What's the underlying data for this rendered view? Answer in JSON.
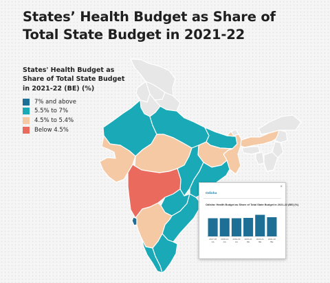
{
  "title": "States’ Health Budget as Share of Total State Budget in 2021-22",
  "legend": {
    "title": "States' Health Budget as Share of Total State Budget in 2021-22 (BE) (%)",
    "items": [
      {
        "label": "7% and above",
        "color": "#1d6f95"
      },
      {
        "label": "5.5% to 7%",
        "color": "#1aaab7"
      },
      {
        "label": "4.5% to 5.4%",
        "color": "#f4c9a4"
      },
      {
        "label": "Below 4.5%",
        "color": "#ea6b5e"
      }
    ]
  },
  "map_colors": {
    "no_data": "#e7e7e7",
    "cat_7_plus": "#1d6f95",
    "cat_55_7": "#1aaab7",
    "cat_45_54": "#f4c9a4",
    "cat_below_45": "#ea6b5e",
    "border": "#ffffff"
  },
  "popup": {
    "close_icon": "×",
    "state_name": "Odisha",
    "chart_title": "Odisha: Health Budget as Share of Total State Budget in 2021-22 (BE) (%)",
    "bar_color": "#1d6f95"
  },
  "chart_data": {
    "type": "bar",
    "title": "Odisha: Health Budget as Share of Total State Budget in 2021-22 (BE) (%)",
    "categories": [
      "2017-18 AA",
      "2018-19 AA",
      "2019-20 AA",
      "2020-21 RE",
      "2020-21 BE",
      "2021-22 BE"
    ],
    "values": [
      5.3,
      5.3,
      5.3,
      5.4,
      6.3,
      5.6
    ],
    "ylim": [
      0,
      8
    ],
    "grid": false,
    "xlabel": "",
    "ylabel": ""
  }
}
